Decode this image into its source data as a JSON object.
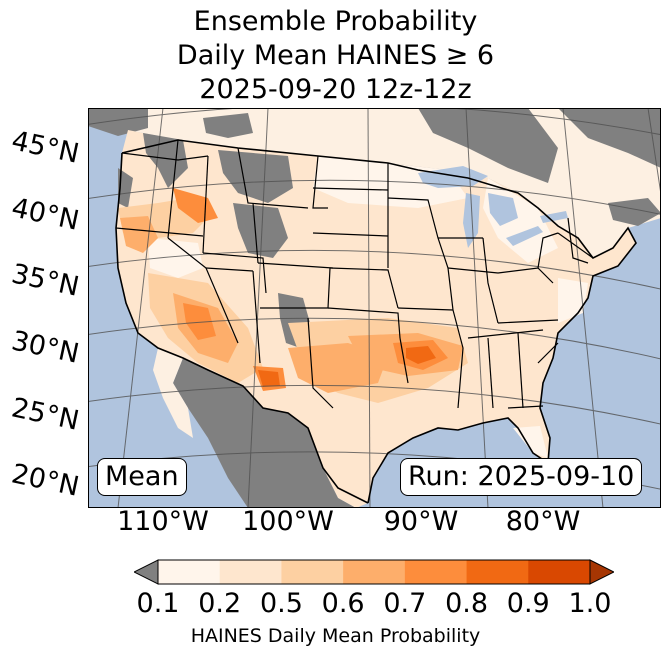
{
  "title": {
    "line1": "Ensemble Probability",
    "line2": "Daily Mean HAINES ≥ 6",
    "line3": "2025-09-20 12z-12z"
  },
  "map": {
    "projection": "lambert-conformal",
    "extent": {
      "lon_min": -120,
      "lon_max": -74,
      "lat_min": 21,
      "lat_max": 50
    },
    "lat_labels": [
      "45°N",
      "40°N",
      "35°N",
      "30°N",
      "25°N",
      "20°N"
    ],
    "lon_labels": [
      "110°W",
      "100°W",
      "90°W",
      "80°W"
    ],
    "ocean_color": "#b0c4de",
    "land_nodata_color": "#808080",
    "max_region": "southern plains / lower mississippi valley",
    "max_probability": 0.8
  },
  "annotations": {
    "left": "Mean",
    "right": "Run: 2025-09-10"
  },
  "colorbar": {
    "ticks": [
      "0.1",
      "0.2",
      "0.5",
      "0.6",
      "0.7",
      "0.8",
      "0.9",
      "1.0"
    ],
    "colors": [
      "#fff5eb",
      "#fee6ce",
      "#fdd0a2",
      "#fdae6b",
      "#fd8d3c",
      "#f16913",
      "#d94801"
    ],
    "under_color": "#808080",
    "over_color": "#a63603",
    "label": "HAINES Daily Mean Probability"
  }
}
